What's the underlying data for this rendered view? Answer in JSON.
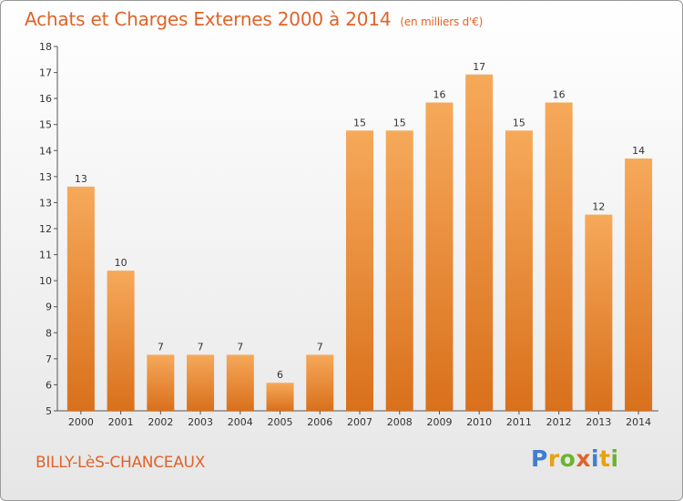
{
  "title": "Achats et Charges Externes 2000 à 2014",
  "unit": "(en milliers d'€)",
  "commune": "BILLY-LèS-CHANCEAUX",
  "logo": {
    "p": "P",
    "r": "r",
    "o": "o",
    "x": "x",
    "i": "i",
    "t": "t",
    "i2": "i"
  },
  "colors": {
    "bar_top": "#f6a95a",
    "bar_bottom": "#d9701c",
    "accent": "#e0632a"
  },
  "chart_data": {
    "type": "bar",
    "title": "Achats et Charges Externes 2000 à 2014",
    "subtitle": "(en milliers d'€)",
    "xlabel": "",
    "ylabel": "",
    "categories": [
      "2000",
      "2001",
      "2002",
      "2003",
      "2004",
      "2005",
      "2006",
      "2007",
      "2008",
      "2009",
      "2010",
      "2011",
      "2012",
      "2013",
      "2014"
    ],
    "values": [
      13,
      10,
      7,
      7,
      7,
      6,
      7,
      15,
      15,
      16,
      17,
      15,
      16,
      12,
      14
    ],
    "value_labels": [
      "13",
      "10",
      "7",
      "7",
      "7",
      "6",
      "7",
      "15",
      "15",
      "16",
      "17",
      "15",
      "16",
      "12",
      "14"
    ],
    "ylim": [
      5,
      18
    ],
    "yticks": [
      "5",
      "6",
      "7",
      "8",
      "9",
      "10",
      "11",
      "12",
      "13",
      "13",
      "14",
      "15",
      "16",
      "17",
      "18"
    ],
    "grid": false,
    "legend": "none"
  }
}
